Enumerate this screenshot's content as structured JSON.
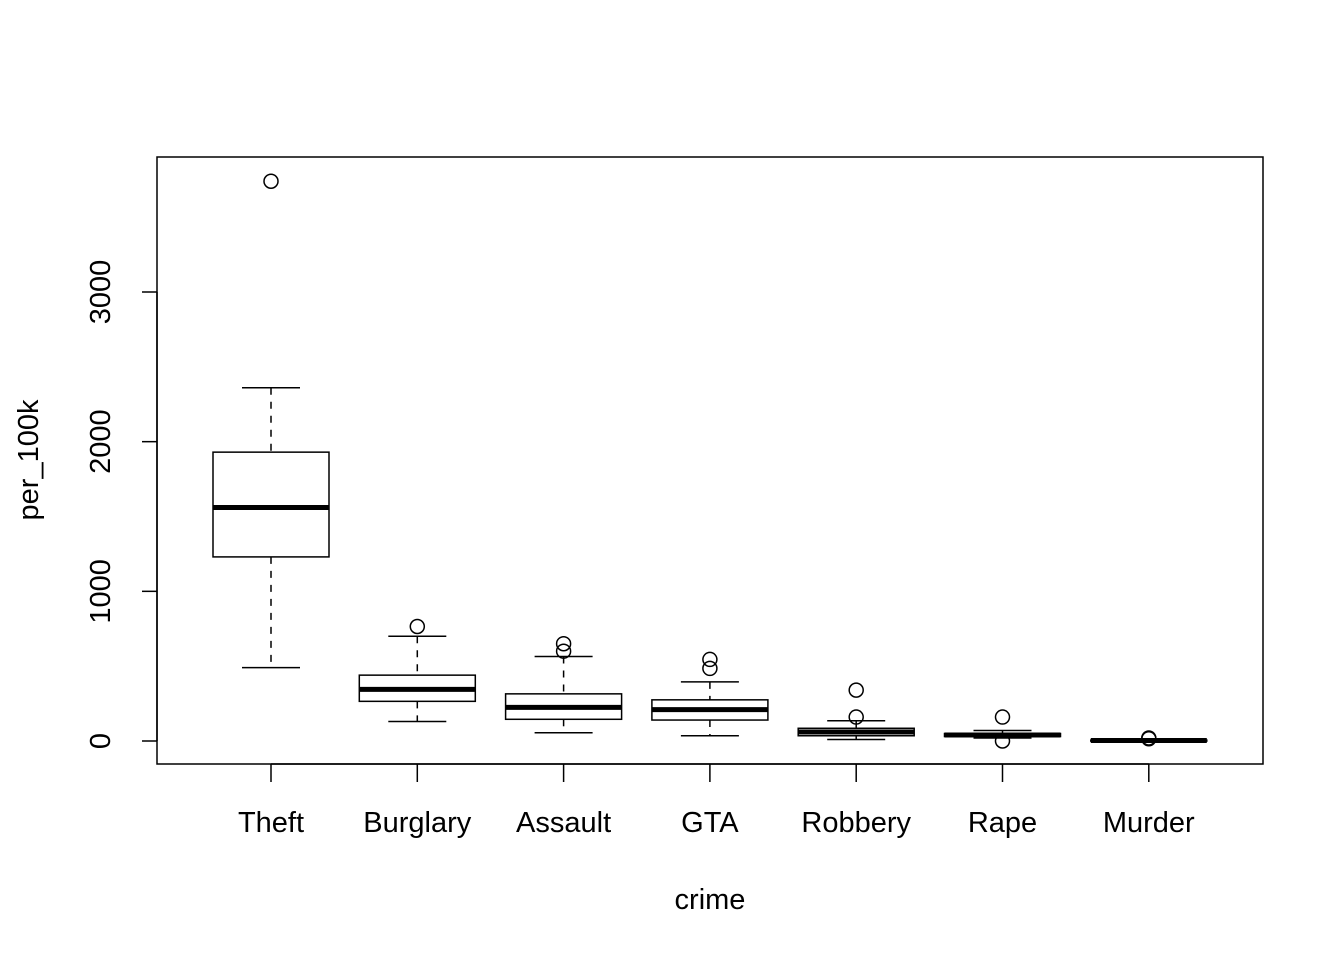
{
  "chart_data": {
    "type": "box",
    "title": "",
    "xlabel": "crime",
    "ylabel": "per_100k",
    "ylim": [
      -150,
      4050
    ],
    "yticks": [
      0,
      1000,
      2000,
      3000
    ],
    "grid": false,
    "categories": [
      "Theft",
      "Burglary",
      "Assault",
      "GTA",
      "Robbery",
      "Rape",
      "Murder"
    ],
    "boxes": [
      {
        "name": "Theft",
        "whisker_low": 490,
        "q1": 1230,
        "median": 1560,
        "q3": 1930,
        "whisker_high": 2360,
        "outliers": [
          3740
        ]
      },
      {
        "name": "Burglary",
        "whisker_low": 130,
        "q1": 265,
        "median": 345,
        "q3": 440,
        "whisker_high": 700,
        "outliers": [
          765
        ]
      },
      {
        "name": "Assault",
        "whisker_low": 55,
        "q1": 145,
        "median": 225,
        "q3": 315,
        "whisker_high": 565,
        "outliers": [
          600,
          650
        ]
      },
      {
        "name": "GTA",
        "whisker_low": 35,
        "q1": 140,
        "median": 210,
        "q3": 275,
        "whisker_high": 395,
        "outliers": [
          485,
          545
        ]
      },
      {
        "name": "Robbery",
        "whisker_low": 10,
        "q1": 35,
        "median": 60,
        "q3": 85,
        "whisker_high": 135,
        "outliers": [
          160,
          340
        ]
      },
      {
        "name": "Rape",
        "whisker_low": 20,
        "q1": 30,
        "median": 40,
        "q3": 50,
        "whisker_high": 70,
        "outliers": [
          0,
          160
        ]
      },
      {
        "name": "Murder",
        "whisker_low": 0,
        "q1": 1,
        "median": 3,
        "q3": 6,
        "whisker_high": 10,
        "outliers": [
          15,
          20
        ]
      }
    ]
  }
}
